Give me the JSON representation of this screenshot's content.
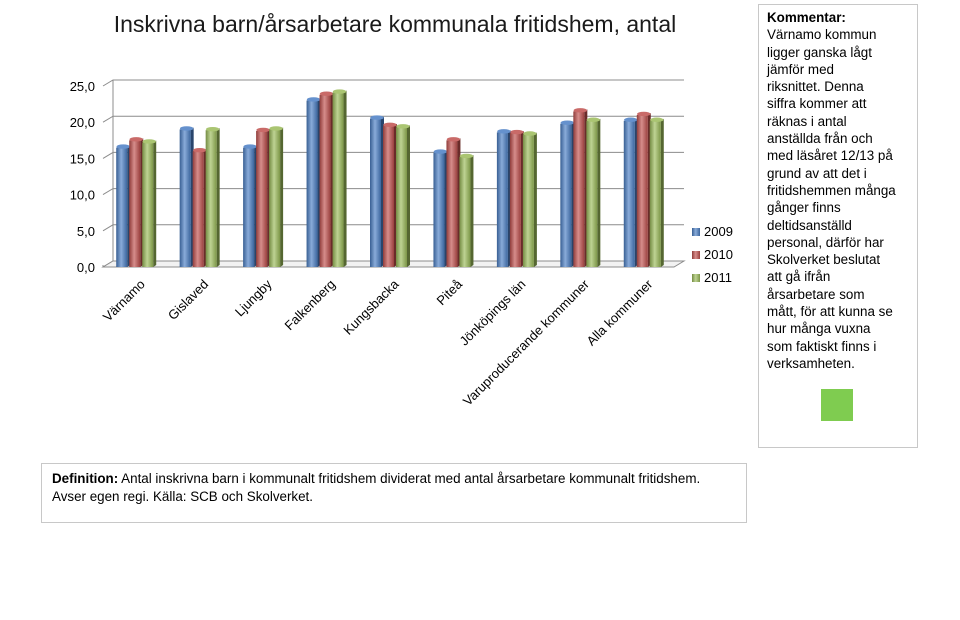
{
  "chart_data": {
    "type": "bar",
    "title": "Inskrivna barn/årsarbetare kommunala fritidshem, antal",
    "categories": [
      "Värnamo",
      "Gislaved",
      "Ljungby",
      "Falkenberg",
      "Kungsbacka",
      "Piteå",
      "Jönköpings län",
      "Varuproducerande kommuner",
      "Alla kommuner"
    ],
    "series": [
      {
        "name": "2009",
        "color": "#4a7ec4",
        "values": [
          16.5,
          19.0,
          16.5,
          23.0,
          20.5,
          15.8,
          18.6,
          19.8,
          20.2
        ]
      },
      {
        "name": "2010",
        "color": "#c0504d",
        "values": [
          17.5,
          16.0,
          18.8,
          23.8,
          19.5,
          17.5,
          18.5,
          21.5,
          21.0
        ]
      },
      {
        "name": "2011",
        "color": "#9bbb59",
        "values": [
          17.2,
          18.9,
          19.0,
          24.1,
          19.3,
          15.2,
          18.3,
          20.2,
          20.2
        ]
      }
    ],
    "y_ticks": [
      "0,0",
      "5,0",
      "10,0",
      "15,0",
      "20,0",
      "25,0"
    ],
    "ylim": [
      0,
      25
    ],
    "legend_position": "right",
    "grid": true
  },
  "comment": {
    "title": "Kommentar:",
    "text": " Värnamo kommun\nligger ganska lågt\njämför med\nriksnittet. Denna\nsiffra kommer att\nräknas i antal\nanställda från och\nmed läsåret 12/13 på\ngrund av att det i\nfritidshemmen många\ngånger finns\ndeltidsanställd\npersonal, därför har\nSkolverket beslutat\natt gå ifrån\nårsarbetare som\nmått, för att kunna se\nhur många vuxna\nsom faktiskt finns i\nverksamheten.",
    "status_color": "#7fcc50"
  },
  "definition": {
    "label": "Definition:",
    "text": " Antal inskrivna barn i kommunalt fritidshem dividerat med antal årsarbetare kommunalt fritidshem. Avser egen regi. Källa: SCB och Skolverket."
  }
}
